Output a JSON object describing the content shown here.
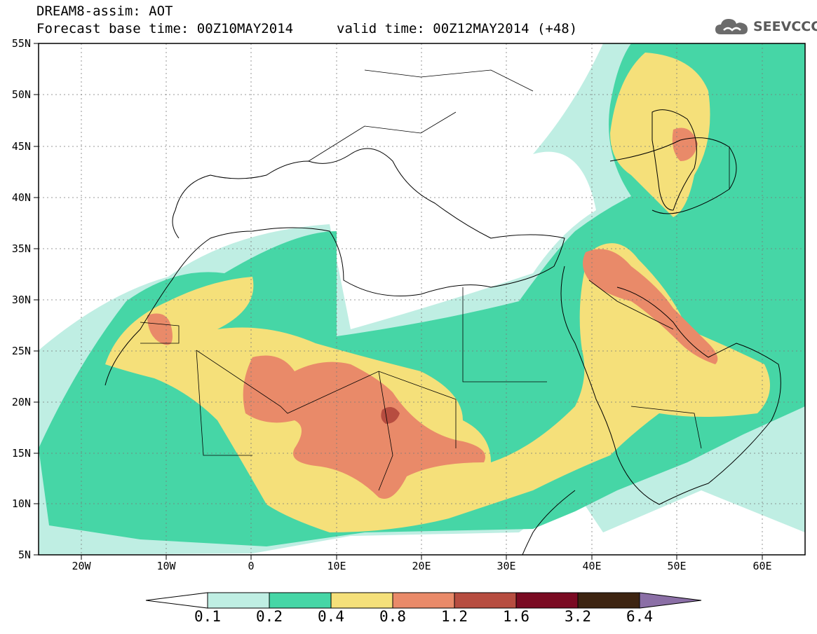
{
  "header": {
    "title": "DREAM8-assim: AOT",
    "base_time": "Forecast base time: 00Z10MAY2014",
    "valid_time": "valid time: 00Z12MAY2014 (+48)"
  },
  "logo": {
    "text": "SEEVCCC",
    "icon": "cloud-icon"
  },
  "map": {
    "lat_labels": [
      "55N",
      "50N",
      "45N",
      "40N",
      "35N",
      "30N",
      "25N",
      "20N",
      "15N",
      "10N",
      "5N"
    ],
    "lon_labels": [
      "20W",
      "10W",
      "0",
      "10E",
      "20E",
      "30E",
      "40E",
      "50E",
      "60E"
    ],
    "lon_range": [
      -25,
      65
    ],
    "lat_range": [
      5,
      55
    ],
    "grid": "dotted",
    "variable": "AOT"
  },
  "colorbar": {
    "labels": [
      "0.1",
      "0.2",
      "0.4",
      "0.8",
      "1.2",
      "1.6",
      "3.2",
      "6.4"
    ],
    "colors": [
      "#ffffff",
      "#bfeee3",
      "#46d6a6",
      "#f5e07a",
      "#e98a69",
      "#b74d40",
      "#7a0a22",
      "#3d2411",
      "#8b6fa6"
    ]
  }
}
